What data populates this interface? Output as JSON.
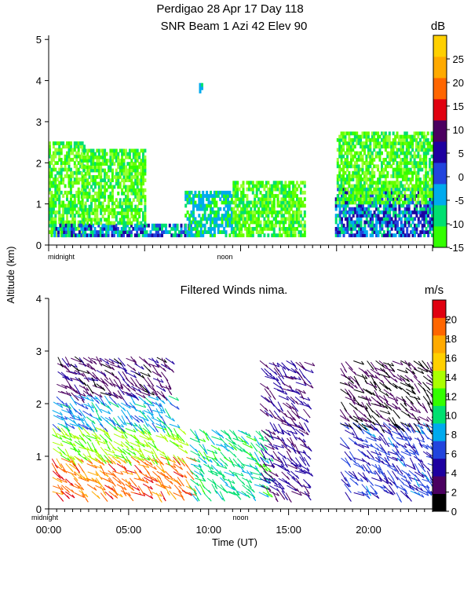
{
  "title_line1": "Perdigao  28 Apr 17 Day 118",
  "title_line2": "SNR Beam  1 Azi   42 Elev 90",
  "y_axis_label": "Altitude (km)",
  "x_axis_label": "Time (UT)",
  "chart_data": [
    {
      "type": "heatmap",
      "title": "SNR Beam  1 Azi   42 Elev 90",
      "ylabel": "Altitude (km)",
      "yticks": [
        "0",
        "1",
        "2",
        "3",
        "4",
        "5"
      ],
      "ylim": [
        0,
        5.1
      ],
      "xlim": [
        0,
        24
      ],
      "xtick_labels": [
        {
          "x": 0,
          "label": "midnight"
        },
        {
          "x": 12,
          "label": "noon"
        }
      ],
      "colorbar": {
        "unit": "dB",
        "ticks": [
          "25",
          "20",
          "15",
          "10",
          "5",
          "0",
          "-5",
          "-10",
          "-15"
        ],
        "range": [
          -15,
          30
        ],
        "colors": [
          "#33ff00",
          "#00e070",
          "#00aaee",
          "#2244dd",
          "#1e00a0",
          "#4b0060",
          "#e00010",
          "#ff6600",
          "#ffaa00",
          "#ffd000"
        ]
      },
      "regions": [
        {
          "t0": 0.0,
          "t1": 2.2,
          "base": 0.2,
          "top": 2.5,
          "level": "low"
        },
        {
          "t0": 0.3,
          "t1": 9.2,
          "base": 0.2,
          "top": 0.5,
          "level": "strong"
        },
        {
          "t0": 2.0,
          "t1": 6.0,
          "base": 0.5,
          "top": 2.3,
          "level": "low"
        },
        {
          "t0": 8.5,
          "t1": 11.5,
          "base": 0.2,
          "top": 1.3,
          "level": "medium"
        },
        {
          "t0": 11.5,
          "t1": 16.0,
          "base": 0.2,
          "top": 1.5,
          "level": "low"
        },
        {
          "t0": 17.9,
          "t1": 24.0,
          "base": 0.2,
          "top": 1.4,
          "level": "strong"
        },
        {
          "t0": 18.0,
          "t1": 24.0,
          "base": 1.0,
          "top": 2.7,
          "level": "low"
        },
        {
          "t0": 9.4,
          "t1": 9.6,
          "base": 3.7,
          "top": 3.9,
          "level": "medium"
        }
      ]
    },
    {
      "type": "scatter",
      "title": "Filtered Winds nima.",
      "xlabel": "Time (UT)",
      "ylabel": "Altitude (km)",
      "yticks": [
        "0",
        "1",
        "2",
        "3",
        "4"
      ],
      "ylim": [
        0,
        4
      ],
      "xlim": [
        0,
        24
      ],
      "xticks": [
        {
          "x": 0,
          "label": "00:00"
        },
        {
          "x": 5,
          "label": "05:00"
        },
        {
          "x": 10,
          "label": "10:00"
        },
        {
          "x": 15,
          "label": "15:00"
        },
        {
          "x": 20,
          "label": "20:00"
        }
      ],
      "minor_tick_labels": [
        {
          "x": 0,
          "label": "midnight"
        },
        {
          "x": 12,
          "label": "noon"
        }
      ],
      "colorbar": {
        "unit": "m/s",
        "ticks": [
          "20",
          "18",
          "16",
          "14",
          "12",
          "10",
          "8",
          "6",
          "4",
          "2",
          "0"
        ],
        "range": [
          0,
          22
        ],
        "colors": [
          "#000000",
          "#4b0060",
          "#1e00a0",
          "#2244dd",
          "#00aaee",
          "#00e070",
          "#33ff00",
          "#aaff00",
          "#ffd000",
          "#ffaa00",
          "#ff6600",
          "#e00010"
        ]
      },
      "wind_speed_regions": [
        {
          "t0": 0.2,
          "t1": 8.8,
          "h0": 0.3,
          "h1": 1.0,
          "speed": 19
        },
        {
          "t0": 0.2,
          "t1": 8.2,
          "h0": 1.0,
          "h1": 1.6,
          "speed": 13
        },
        {
          "t0": 0.2,
          "t1": 7.5,
          "h0": 1.6,
          "h1": 2.2,
          "speed": 8
        },
        {
          "t0": 0.5,
          "t1": 7.5,
          "h0": 2.2,
          "h1": 2.9,
          "speed": 3
        },
        {
          "t0": 8.8,
          "t1": 13.5,
          "h0": 0.3,
          "h1": 1.5,
          "speed": 10
        },
        {
          "t0": 13.2,
          "t1": 16.0,
          "h0": 0.3,
          "h1": 2.8,
          "speed": 4
        },
        {
          "t0": 18.2,
          "t1": 24.0,
          "h0": 0.3,
          "h1": 1.6,
          "speed": 6
        },
        {
          "t0": 18.2,
          "t1": 24.0,
          "h0": 1.6,
          "h1": 2.8,
          "speed": 2
        }
      ]
    }
  ]
}
